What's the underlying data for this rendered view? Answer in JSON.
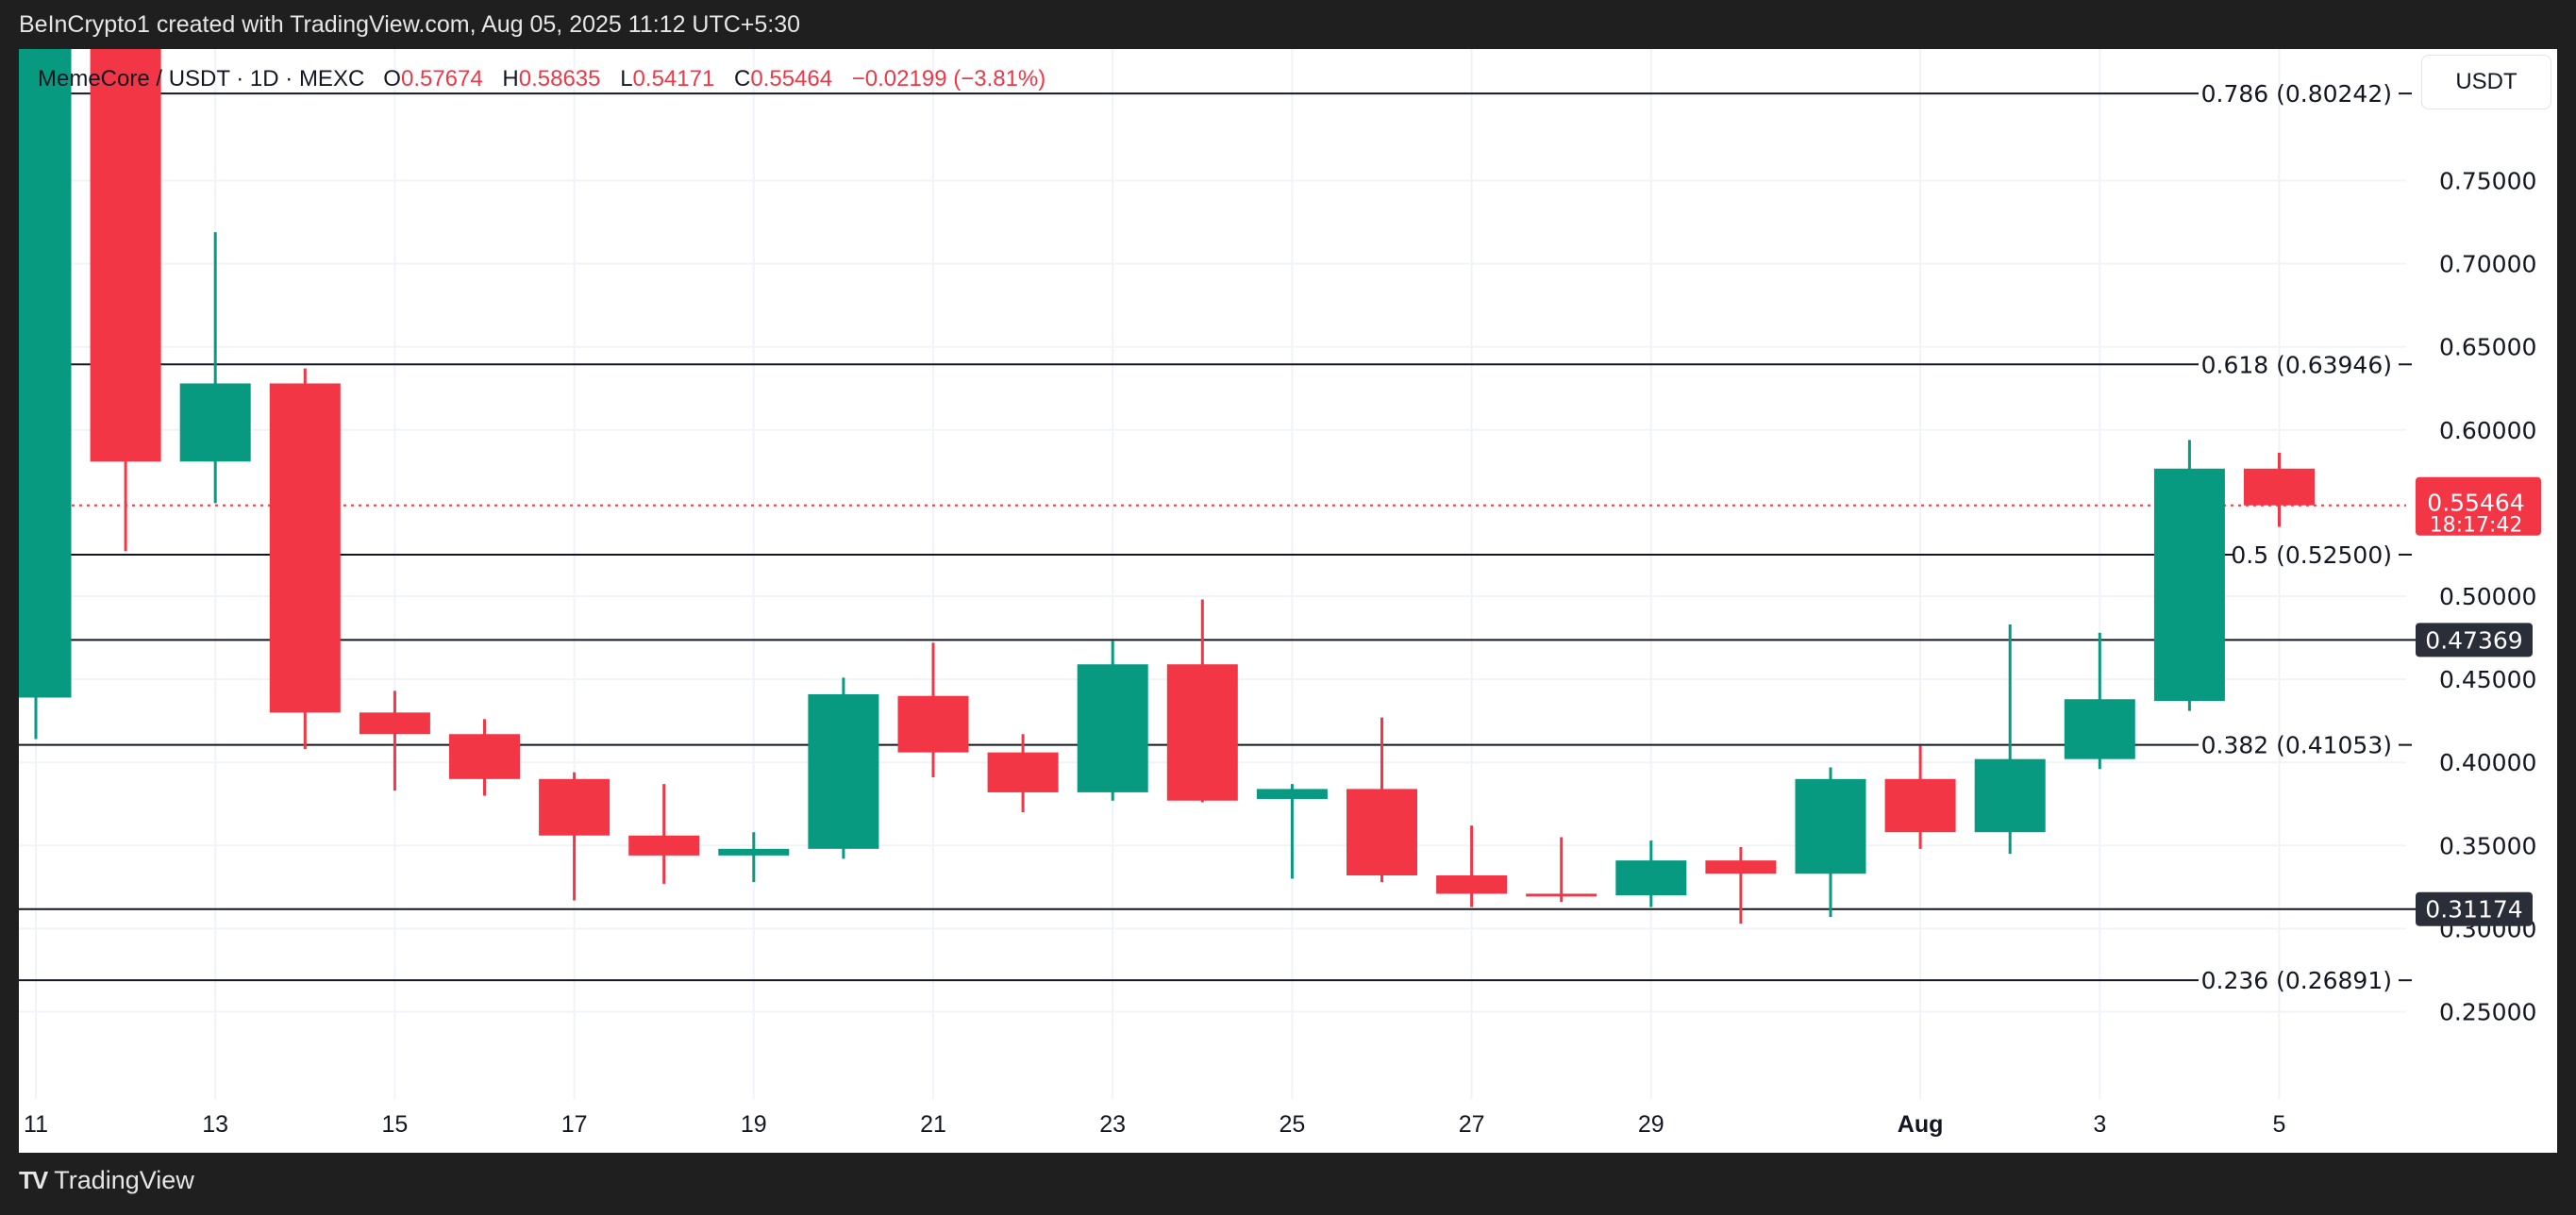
{
  "credit": "BeInCrypto1 created with TradingView.com, Aug 05, 2025 11:12 UTC+5:30",
  "legend": {
    "symbol": "MemeCore / USDT · 1D · MEXC",
    "open_label": "O",
    "open": "0.57674",
    "high_label": "H",
    "high": "0.58635",
    "low_label": "L",
    "low": "0.54171",
    "close_label": "C",
    "close": "0.55464",
    "change": "−0.02199 (−3.81%)"
  },
  "currency_button": "USDT",
  "footer": {
    "logo_text": "TradingView"
  },
  "colors": {
    "up": "#089981",
    "down": "#f23645",
    "badge_dark": "#2a2e39",
    "background": "#ffffff",
    "frame": "#1f1f1f"
  },
  "chart_data": {
    "type": "candlestick",
    "title": "",
    "xlabel": "",
    "ylabel": "USDT",
    "ylim": [
      0.21,
      0.82
    ],
    "grid": true,
    "x_tick_labels": [
      "11",
      "13",
      "15",
      "17",
      "19",
      "21",
      "23",
      "25",
      "27",
      "29",
      "Aug",
      "3",
      "5"
    ],
    "y_tick_labels": [
      "0.75000",
      "0.70000",
      "0.65000",
      "0.60000",
      "0.50000",
      "0.45000",
      "0.40000",
      "0.35000",
      "0.30000",
      "0.25000"
    ],
    "candles": [
      {
        "date": "2025-07-11",
        "o": 0.439,
        "h": 0.9,
        "l": 0.414,
        "c": 0.86
      },
      {
        "date": "2025-07-12",
        "o": 0.86,
        "h": 0.9,
        "l": 0.527,
        "c": 0.581
      },
      {
        "date": "2025-07-13",
        "o": 0.581,
        "h": 0.719,
        "l": 0.556,
        "c": 0.628
      },
      {
        "date": "2025-07-14",
        "o": 0.628,
        "h": 0.637,
        "l": 0.408,
        "c": 0.43
      },
      {
        "date": "2025-07-15",
        "o": 0.43,
        "h": 0.443,
        "l": 0.383,
        "c": 0.417
      },
      {
        "date": "2025-07-16",
        "o": 0.417,
        "h": 0.426,
        "l": 0.38,
        "c": 0.39
      },
      {
        "date": "2025-07-17",
        "o": 0.39,
        "h": 0.394,
        "l": 0.317,
        "c": 0.356
      },
      {
        "date": "2025-07-18",
        "o": 0.356,
        "h": 0.387,
        "l": 0.327,
        "c": 0.344
      },
      {
        "date": "2025-07-19",
        "o": 0.344,
        "h": 0.358,
        "l": 0.328,
        "c": 0.348
      },
      {
        "date": "2025-07-20",
        "o": 0.348,
        "h": 0.451,
        "l": 0.342,
        "c": 0.441
      },
      {
        "date": "2025-07-21",
        "o": 0.44,
        "h": 0.472,
        "l": 0.391,
        "c": 0.406
      },
      {
        "date": "2025-07-22",
        "o": 0.406,
        "h": 0.417,
        "l": 0.37,
        "c": 0.382
      },
      {
        "date": "2025-07-23",
        "o": 0.382,
        "h": 0.473,
        "l": 0.377,
        "c": 0.459
      },
      {
        "date": "2025-07-24",
        "o": 0.459,
        "h": 0.498,
        "l": 0.376,
        "c": 0.377
      },
      {
        "date": "2025-07-25",
        "o": 0.378,
        "h": 0.387,
        "l": 0.33,
        "c": 0.384
      },
      {
        "date": "2025-07-26",
        "o": 0.384,
        "h": 0.427,
        "l": 0.328,
        "c": 0.332
      },
      {
        "date": "2025-07-27",
        "o": 0.332,
        "h": 0.362,
        "l": 0.313,
        "c": 0.321
      },
      {
        "date": "2025-07-28",
        "o": 0.321,
        "h": 0.355,
        "l": 0.316,
        "c": 0.32
      },
      {
        "date": "2025-07-29",
        "o": 0.32,
        "h": 0.353,
        "l": 0.313,
        "c": 0.341
      },
      {
        "date": "2025-07-30",
        "o": 0.341,
        "h": 0.349,
        "l": 0.303,
        "c": 0.333
      },
      {
        "date": "2025-07-31",
        "o": 0.333,
        "h": 0.397,
        "l": 0.307,
        "c": 0.39
      },
      {
        "date": "2025-08-01",
        "o": 0.39,
        "h": 0.41,
        "l": 0.348,
        "c": 0.358
      },
      {
        "date": "2025-08-02",
        "o": 0.358,
        "h": 0.483,
        "l": 0.345,
        "c": 0.402
      },
      {
        "date": "2025-08-03",
        "o": 0.402,
        "h": 0.478,
        "l": 0.396,
        "c": 0.438
      },
      {
        "date": "2025-08-04",
        "o": 0.437,
        "h": 0.594,
        "l": 0.431,
        "c": 0.57674
      },
      {
        "date": "2025-08-05",
        "o": 0.57674,
        "h": 0.58635,
        "l": 0.54171,
        "c": 0.55464
      }
    ],
    "fib_levels": [
      {
        "label": "0.786 (0.80242)",
        "price": 0.80242
      },
      {
        "label": "0.618 (0.63946)",
        "price": 0.63946
      },
      {
        "label": "0.5 (0.52500)",
        "price": 0.525
      },
      {
        "label": "0.382 (0.41053)",
        "price": 0.41053
      },
      {
        "label": "0.236 (0.26891)",
        "price": 0.26891
      }
    ],
    "horizontal_levels": [
      {
        "label": "0.47369",
        "price": 0.47369
      },
      {
        "label": "0.31174",
        "price": 0.31174
      }
    ],
    "current_price": {
      "label": "0.55464",
      "price": 0.55464,
      "countdown": "18:17:42"
    }
  }
}
